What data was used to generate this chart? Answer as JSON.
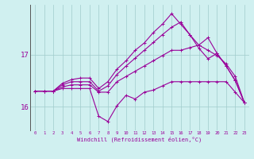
{
  "xlabel": "Windchill (Refroidissement éolien,°C)",
  "hours": [
    0,
    1,
    2,
    3,
    4,
    5,
    6,
    7,
    8,
    9,
    10,
    11,
    12,
    13,
    14,
    15,
    16,
    17,
    18,
    19,
    20,
    21,
    22,
    23
  ],
  "line_color": "#990099",
  "bg_color": "#d0f0f0",
  "grid_color": "#a0cccc",
  "curves": [
    [
      16.3,
      16.3,
      16.3,
      16.35,
      16.35,
      16.35,
      16.35,
      15.82,
      15.72,
      16.02,
      16.22,
      16.15,
      16.28,
      16.32,
      16.4,
      16.48,
      16.48,
      16.48,
      16.48,
      16.48,
      16.48,
      16.48,
      16.28,
      16.08
    ],
    [
      16.3,
      16.3,
      16.3,
      16.38,
      16.42,
      16.42,
      16.42,
      16.28,
      16.28,
      16.48,
      16.58,
      16.68,
      16.78,
      16.88,
      16.98,
      17.08,
      17.08,
      17.13,
      17.18,
      17.08,
      16.98,
      16.82,
      16.58,
      16.08
    ],
    [
      16.3,
      16.3,
      16.3,
      16.42,
      16.48,
      16.48,
      16.48,
      16.3,
      16.4,
      16.62,
      16.78,
      16.93,
      17.08,
      17.23,
      17.38,
      17.52,
      17.62,
      17.38,
      17.12,
      16.92,
      17.02,
      16.78,
      16.5,
      16.08
    ],
    [
      16.3,
      16.3,
      16.3,
      16.45,
      16.52,
      16.55,
      16.55,
      16.35,
      16.48,
      16.72,
      16.88,
      17.08,
      17.22,
      17.42,
      17.58,
      17.78,
      17.58,
      17.38,
      17.18,
      17.32,
      17.02,
      16.78,
      16.5,
      16.08
    ]
  ],
  "ylim": [
    15.55,
    17.95
  ],
  "xlim": [
    -0.5,
    23.5
  ],
  "yticks": [
    16.0,
    17.0
  ],
  "figsize": [
    3.2,
    2.0
  ],
  "dpi": 100
}
